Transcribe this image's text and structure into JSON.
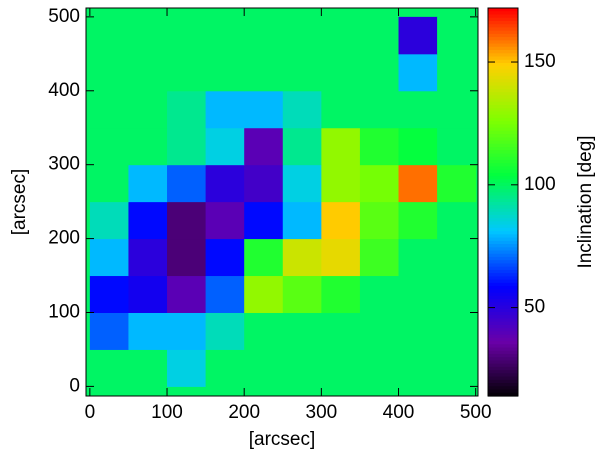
{
  "chart_data": {
    "type": "heatmap",
    "xlabel": "[arcsec]",
    "ylabel": "[arcsec]",
    "colorbar_label": "Inclination [deg]",
    "x": [
      25,
      75,
      125,
      175,
      225,
      275,
      325,
      375,
      425,
      475
    ],
    "y": [
      25,
      75,
      125,
      175,
      225,
      275,
      325,
      375,
      425,
      475
    ],
    "z": [
      [
        100,
        100,
        85,
        100,
        100,
        100,
        100,
        100,
        100,
        100
      ],
      [
        70,
        80,
        80,
        90,
        100,
        100,
        100,
        100,
        100,
        100
      ],
      [
        60,
        55,
        40,
        70,
        130,
        120,
        110,
        100,
        100,
        100
      ],
      [
        80,
        50,
        30,
        60,
        110,
        140,
        145,
        115,
        100,
        100
      ],
      [
        90,
        60,
        30,
        40,
        60,
        80,
        150,
        120,
        110,
        100
      ],
      [
        100,
        80,
        70,
        50,
        45,
        85,
        130,
        125,
        160,
        110
      ],
      [
        100,
        100,
        95,
        85,
        40,
        95,
        130,
        110,
        105,
        100
      ],
      [
        100,
        100,
        95,
        80,
        80,
        90,
        100,
        100,
        100,
        100
      ],
      [
        100,
        100,
        100,
        100,
        100,
        100,
        100,
        100,
        80,
        100
      ],
      [
        100,
        100,
        100,
        100,
        100,
        100,
        100,
        100,
        50,
        100
      ]
    ],
    "xlim": [
      -5,
      503
    ],
    "ylim": [
      -13,
      512
    ],
    "xticks": [
      0,
      100,
      200,
      300,
      400,
      500
    ],
    "yticks": [
      0,
      100,
      200,
      300,
      400,
      500
    ],
    "clim": [
      14,
      172
    ],
    "cticks": [
      50,
      100,
      150
    ],
    "colormap": [
      "#000000",
      "#6a00a8",
      "#0000ff",
      "#00c8ff",
      "#00ff40",
      "#80ff00",
      "#ffd000",
      "#ff0000"
    ]
  }
}
